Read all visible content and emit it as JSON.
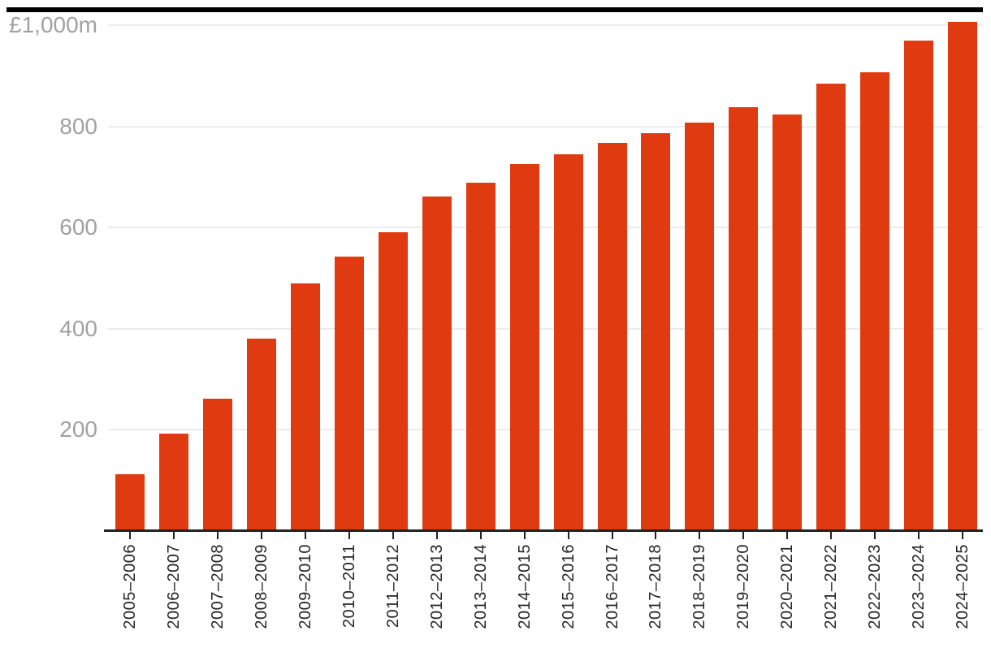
{
  "chart_data": {
    "type": "bar",
    "title": "",
    "xlabel": "",
    "ylabel": "",
    "unit_label": "£1,000m",
    "categories": [
      "2005–2006",
      "2006–2007",
      "2007–2008",
      "2008–2009",
      "2009–2010",
      "2010–2011",
      "2011–2012",
      "2012–2013",
      "2013–2014",
      "2014–2015",
      "2015–2016",
      "2016–2017",
      "2017–2018",
      "2018–2019",
      "2019–2020",
      "2020–2021",
      "2021–2022",
      "2022–2023",
      "2023–2024",
      "2024–2025"
    ],
    "values": [
      112,
      193,
      261,
      381,
      490,
      542,
      590,
      662,
      689,
      725,
      745,
      768,
      786,
      808,
      838,
      823,
      885,
      907,
      970,
      1006
    ],
    "yticks": [
      {
        "value": 1000,
        "label": "£1,000m"
      },
      {
        "value": 800,
        "label": "800"
      },
      {
        "value": 600,
        "label": "600"
      },
      {
        "value": 400,
        "label": "400"
      },
      {
        "value": 200,
        "label": "200"
      }
    ],
    "ylim": [
      0,
      1027
    ],
    "grid": true,
    "legend": "none"
  },
  "colors": {
    "bar": "#e03b10",
    "gridline": "#ececec",
    "y_tick_label": "#a1a1a1",
    "x_tick_label": "#262626",
    "axis_line": "#222222",
    "tick_mark": "#222222",
    "top_rule": "#000000",
    "background": "#ffffff"
  }
}
